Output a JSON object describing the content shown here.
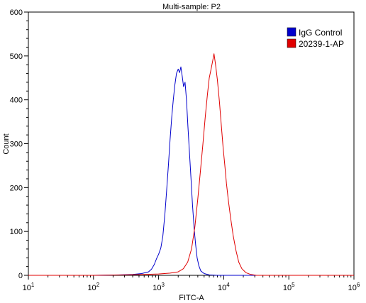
{
  "chart_data": {
    "type": "line",
    "title": "Multi-sample: P2",
    "xlabel": "FITC-A",
    "ylabel": "Count",
    "x_scale": "log",
    "xlim": [
      10,
      1000000
    ],
    "ylim": [
      0,
      600
    ],
    "grid": false,
    "legend_position": "top-right",
    "x_ticks": [
      {
        "value": 10,
        "base": "10",
        "exp": "1"
      },
      {
        "value": 100,
        "base": "10",
        "exp": "2"
      },
      {
        "value": 1000,
        "base": "10",
        "exp": "3"
      },
      {
        "value": 10000,
        "base": "10",
        "exp": "4"
      },
      {
        "value": 100000,
        "base": "10",
        "exp": "5"
      },
      {
        "value": 1000000,
        "base": "10",
        "exp": "6"
      }
    ],
    "y_ticks": [
      0,
      100,
      200,
      300,
      400,
      500,
      600
    ],
    "series": [
      {
        "name": "IgG Control",
        "color": "#0000cc",
        "points": [
          [
            10,
            0
          ],
          [
            100,
            0
          ],
          [
            250,
            1
          ],
          [
            400,
            2
          ],
          [
            550,
            4
          ],
          [
            700,
            8
          ],
          [
            780,
            14
          ],
          [
            860,
            25
          ],
          [
            930,
            38
          ],
          [
            1000,
            48
          ],
          [
            1080,
            62
          ],
          [
            1160,
            88
          ],
          [
            1250,
            140
          ],
          [
            1330,
            195
          ],
          [
            1420,
            255
          ],
          [
            1500,
            310
          ],
          [
            1590,
            360
          ],
          [
            1680,
            400
          ],
          [
            1780,
            435
          ],
          [
            1880,
            460
          ],
          [
            2000,
            470
          ],
          [
            2100,
            462
          ],
          [
            2200,
            475
          ],
          [
            2300,
            455
          ],
          [
            2420,
            430
          ],
          [
            2550,
            440
          ],
          [
            2680,
            400
          ],
          [
            2820,
            340
          ],
          [
            2980,
            280
          ],
          [
            3150,
            220
          ],
          [
            3320,
            160
          ],
          [
            3520,
            105
          ],
          [
            3700,
            70
          ],
          [
            3900,
            40
          ],
          [
            4150,
            22
          ],
          [
            4450,
            10
          ],
          [
            5000,
            4
          ],
          [
            6000,
            1
          ],
          [
            8000,
            0
          ],
          [
            20000,
            0
          ],
          [
            1000000,
            0
          ]
        ]
      },
      {
        "name": "20239-1-AP",
        "color": "#e00000",
        "points": [
          [
            10,
            0
          ],
          [
            100,
            0
          ],
          [
            300,
            1
          ],
          [
            600,
            2
          ],
          [
            1000,
            3
          ],
          [
            1500,
            5
          ],
          [
            2000,
            8
          ],
          [
            2400,
            15
          ],
          [
            2800,
            30
          ],
          [
            3200,
            60
          ],
          [
            3600,
            110
          ],
          [
            4000,
            175
          ],
          [
            4400,
            240
          ],
          [
            4800,
            300
          ],
          [
            5200,
            360
          ],
          [
            5600,
            410
          ],
          [
            6000,
            450
          ],
          [
            6400,
            470
          ],
          [
            6800,
            490
          ],
          [
            7100,
            505
          ],
          [
            7500,
            480
          ],
          [
            8000,
            445
          ],
          [
            8600,
            395
          ],
          [
            9200,
            340
          ],
          [
            9800,
            290
          ],
          [
            10400,
            250
          ],
          [
            11000,
            210
          ],
          [
            11800,
            170
          ],
          [
            12800,
            130
          ],
          [
            14000,
            90
          ],
          [
            15500,
            55
          ],
          [
            17000,
            30
          ],
          [
            19000,
            15
          ],
          [
            22000,
            6
          ],
          [
            26000,
            2
          ],
          [
            32000,
            0
          ],
          [
            1000000,
            0
          ]
        ]
      }
    ]
  }
}
